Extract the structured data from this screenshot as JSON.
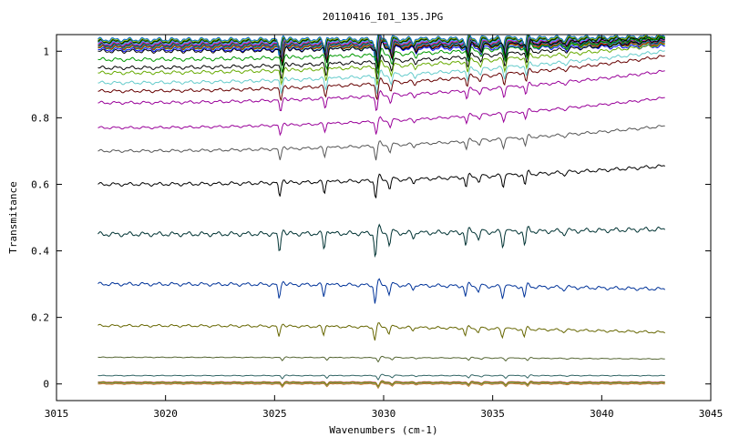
{
  "chart_data": {
    "type": "line",
    "title": "20110416_I01_135.JPG",
    "xlabel": "Wavenumbers (cm-1)",
    "ylabel": "Transmitance",
    "xlim": [
      3015,
      3045
    ],
    "ylim": [
      -0.05,
      1.05
    ],
    "x_ticks": [
      3015,
      3020,
      3025,
      3030,
      3035,
      3040,
      3045
    ],
    "y_ticks": [
      0,
      0.2,
      0.4,
      0.6,
      0.8,
      1
    ],
    "x_tick_labels": [
      "3015",
      "3020",
      "3025",
      "3030",
      "3035",
      "3040",
      "3045"
    ],
    "y_tick_labels": [
      "0",
      "0.2",
      "0.4",
      "0.6",
      "0.8",
      "1"
    ],
    "grid": false,
    "legend": "none",
    "x_range": [
      3016.9,
      3042.9
    ],
    "absorption_lines": [
      {
        "x": 3025.35,
        "depth": 1.0
      },
      {
        "x": 3027.4,
        "depth": 0.8
      },
      {
        "x": 3029.75,
        "depth": 1.2
      },
      {
        "x": 3030.4,
        "depth": 0.6
      },
      {
        "x": 3031.5,
        "depth": 0.3
      },
      {
        "x": 3033.9,
        "depth": 0.7
      },
      {
        "x": 3034.5,
        "depth": 0.4
      },
      {
        "x": 3035.6,
        "depth": 0.8
      },
      {
        "x": 3036.6,
        "depth": 0.7
      },
      {
        "x": 3038.4,
        "depth": 0.2
      }
    ],
    "series": [
      {
        "baseline": 1.0,
        "end": 1.04,
        "color": "#000000"
      },
      {
        "baseline": 0.975,
        "end": 1.04,
        "color": "#009900"
      },
      {
        "baseline": 0.95,
        "end": 1.035,
        "color": "#000000"
      },
      {
        "baseline": 0.935,
        "end": 1.02,
        "color": "#66aa00"
      },
      {
        "baseline": 0.905,
        "end": 1.0,
        "color": "#66cccc"
      },
      {
        "baseline": 0.88,
        "end": 0.985,
        "color": "#660000"
      },
      {
        "baseline": 0.845,
        "end": 0.94,
        "color": "#990099"
      },
      {
        "baseline": 0.77,
        "end": 0.86,
        "color": "#990099"
      },
      {
        "baseline": 0.7,
        "end": 0.775,
        "color": "#555555"
      },
      {
        "baseline": 0.6,
        "end": 0.655,
        "color": "#000000"
      },
      {
        "baseline": 0.45,
        "end": 0.465,
        "color": "#003333"
      },
      {
        "baseline": 0.3,
        "end": 0.285,
        "color": "#003399"
      },
      {
        "baseline": 0.175,
        "end": 0.155,
        "color": "#666600"
      },
      {
        "baseline": 0.08,
        "end": 0.075,
        "color": "#556633"
      },
      {
        "baseline": 0.025,
        "end": 0.025,
        "color": "#336666"
      },
      {
        "baseline": 0.005,
        "end": 0.005,
        "color": "#888800"
      }
    ],
    "top_cluster": {
      "baselines": [
        1.005,
        1.01,
        1.012,
        1.015,
        1.018,
        1.02,
        1.022,
        1.025,
        1.028,
        1.03,
        1.032,
        1.035
      ],
      "colors": [
        "#0000ff",
        "#00aa00",
        "#ff0000",
        "#009999",
        "#000066",
        "#669900",
        "#cc00cc",
        "#3399ff",
        "#006600",
        "#000000",
        "#99cc00",
        "#0066cc"
      ]
    },
    "bottom_cluster": {
      "baselines": [
        0.0,
        0.002,
        0.004,
        0.006
      ],
      "colors": [
        "#cc6600",
        "#999999",
        "#669933",
        "#cc3399"
      ]
    }
  }
}
